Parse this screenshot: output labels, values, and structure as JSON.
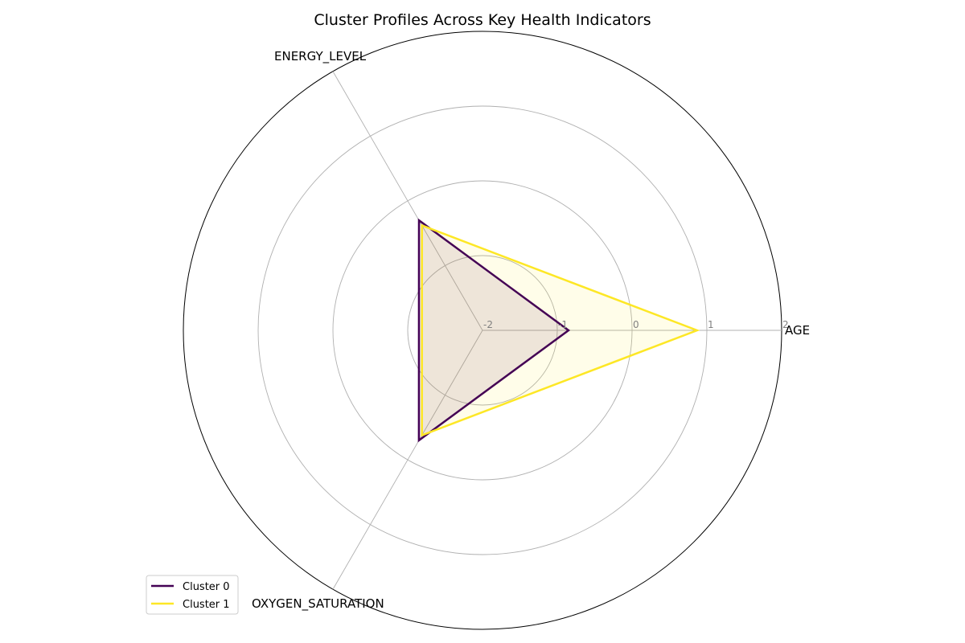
{
  "chart_data": {
    "type": "radar",
    "title": "Cluster Profiles Across Key Health Indicators",
    "axes": [
      "AGE",
      "ENERGY_LEVEL",
      "OXYGEN_SATURATION"
    ],
    "rlim": [
      -2,
      2
    ],
    "r_ticks": [
      -2,
      -1,
      0,
      1,
      2
    ],
    "r_tick_labels": [
      "-2",
      "-1",
      "0",
      "1",
      "2"
    ],
    "grid": true,
    "legend_position": "lower-left",
    "series": [
      {
        "name": "Cluster 0",
        "values": [
          -0.85,
          -0.3,
          -0.3
        ],
        "color": "#440154"
      },
      {
        "name": "Cluster 1",
        "values": [
          0.87,
          -0.38,
          -0.38
        ],
        "color": "#fde725"
      }
    ]
  }
}
